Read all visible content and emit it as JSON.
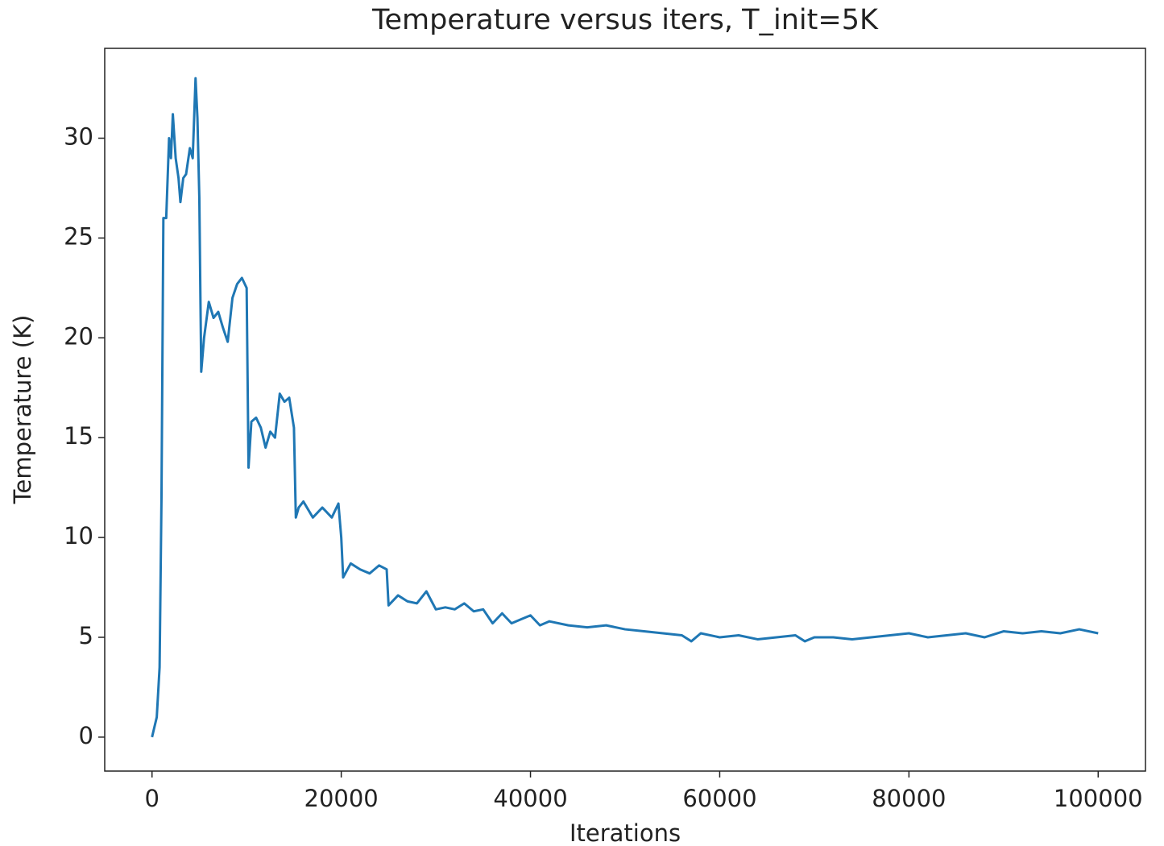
{
  "chart_data": {
    "type": "line",
    "title": "Temperature versus iters, T_init=5K",
    "x_label": "Iterations",
    "y_label": "Temperature (K)",
    "color": "#1f77b4",
    "x": [
      0,
      500,
      800,
      1000,
      1200,
      1500,
      1800,
      2000,
      2200,
      2500,
      2800,
      3000,
      3300,
      3600,
      4000,
      4300,
      4600,
      4800,
      5000,
      5200,
      5500,
      6000,
      6500,
      7000,
      7500,
      8000,
      8500,
      9000,
      9500,
      10000,
      10200,
      10500,
      11000,
      11500,
      12000,
      12500,
      13000,
      13500,
      14000,
      14500,
      15000,
      15200,
      15500,
      16000,
      17000,
      18000,
      19000,
      19700,
      20000,
      20200,
      21000,
      22000,
      23000,
      24000,
      24800,
      25000,
      26000,
      27000,
      28000,
      29000,
      30000,
      31000,
      32000,
      33000,
      34000,
      35000,
      36000,
      37000,
      38000,
      39000,
      40000,
      41000,
      42000,
      44000,
      46000,
      48000,
      50000,
      52000,
      54000,
      56000,
      57000,
      58000,
      60000,
      62000,
      64000,
      66000,
      68000,
      69000,
      70000,
      72000,
      74000,
      76000,
      78000,
      80000,
      82000,
      84000,
      86000,
      88000,
      90000,
      92000,
      94000,
      96000,
      98000,
      100000
    ],
    "values": [
      0,
      1,
      3.5,
      12,
      26,
      26,
      30,
      29,
      31.2,
      29,
      28,
      26.8,
      28,
      28.2,
      29.5,
      29,
      33,
      31,
      27,
      18.3,
      20,
      21.8,
      21,
      21.3,
      20.5,
      19.8,
      22,
      22.7,
      23,
      22.5,
      13.5,
      15.8,
      16,
      15.5,
      14.5,
      15.3,
      15,
      17.2,
      16.8,
      17,
      15.5,
      11,
      11.5,
      11.8,
      11,
      11.5,
      11,
      11.7,
      10,
      8,
      8.7,
      8.4,
      8.2,
      8.6,
      8.4,
      6.6,
      7.1,
      6.8,
      6.7,
      7.3,
      6.4,
      6.5,
      6.4,
      6.7,
      6.3,
      6.4,
      5.7,
      6.2,
      5.7,
      5.9,
      6.1,
      5.6,
      5.8,
      5.6,
      5.5,
      5.6,
      5.4,
      5.3,
      5.2,
      5.1,
      4.8,
      5.2,
      5,
      5.1,
      4.9,
      5,
      5.1,
      4.8,
      5,
      5,
      4.9,
      5,
      5.1,
      5.2,
      5,
      5.1,
      5.2,
      5,
      5.3,
      5.2,
      5.3,
      5.2,
      5.4,
      5.2
    ],
    "xlim": [
      -5000,
      105000
    ],
    "ylim": [
      -1.7,
      34.5
    ],
    "xticks": [
      0,
      20000,
      40000,
      60000,
      80000,
      100000
    ],
    "yticks": [
      0,
      5,
      10,
      15,
      20,
      25,
      30
    ]
  }
}
